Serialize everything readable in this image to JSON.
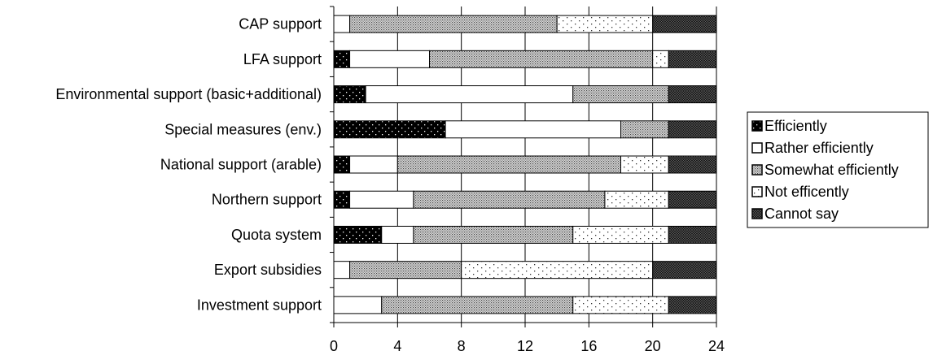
{
  "chart_data": {
    "type": "bar",
    "orientation": "horizontal",
    "stacked": true,
    "categories": [
      "CAP support",
      "LFA support",
      "Environmental support (basic+additional)",
      "Special measures (env.)",
      "National support (arable)",
      "Northern support",
      "Quota system",
      "Export subsidies",
      "Investment support"
    ],
    "series": [
      {
        "name": "Efficiently",
        "color": "#000000",
        "pattern": "dots-on-black",
        "values": [
          0,
          1,
          2,
          7,
          1,
          1,
          3,
          0,
          0
        ]
      },
      {
        "name": "Rather efficiently",
        "color": "#ffffff",
        "pattern": "solid-white",
        "values": [
          1,
          5,
          13,
          11,
          3,
          4,
          2,
          1,
          3
        ]
      },
      {
        "name": "Somewhat efficiently",
        "color": "#bbbbbb",
        "pattern": "dense-dots",
        "values": [
          13,
          14,
          6,
          3,
          14,
          12,
          10,
          7,
          12
        ]
      },
      {
        "name": "Not efficently",
        "color": "#ffffff",
        "pattern": "sparse-dots",
        "values": [
          6,
          1,
          0,
          0,
          3,
          4,
          6,
          12,
          6
        ]
      },
      {
        "name": "Cannot say",
        "color": "#555555",
        "pattern": "dark-dots",
        "values": [
          4,
          3,
          3,
          3,
          3,
          3,
          3,
          4,
          3
        ]
      }
    ],
    "xlim": [
      0,
      24
    ],
    "xticks": [
      0,
      4,
      8,
      12,
      16,
      20,
      24
    ],
    "grid": true,
    "legend_position": "right",
    "title": "",
    "xlabel": "",
    "ylabel": ""
  }
}
